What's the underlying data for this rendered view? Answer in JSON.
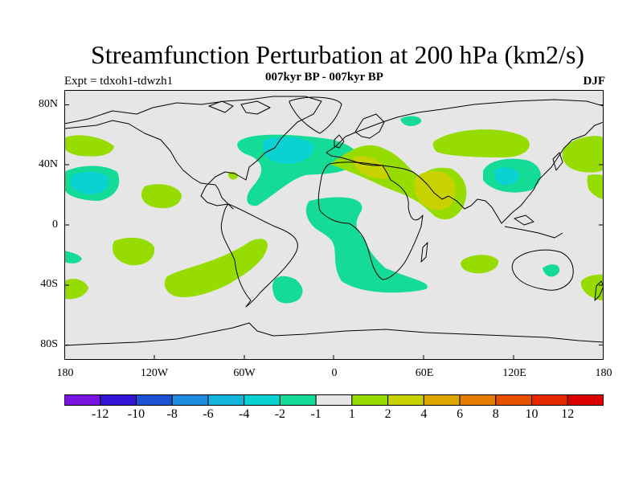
{
  "title": "Streamfunction Perturbation at 200 hPa (km2/s)",
  "subtitle_center": "007kyr BP - 007kyr BP",
  "subtitle_left": "Expt = tdxoh1-tdwzh1",
  "subtitle_right": "DJF",
  "lat_labels": [
    "80N",
    "40N",
    "0",
    "40S",
    "80S"
  ],
  "lon_labels": [
    "180",
    "120W",
    "60W",
    "0",
    "60E",
    "120E",
    "180"
  ],
  "colorbar": {
    "colors": [
      "#7a14e0",
      "#3214d6",
      "#1e50d2",
      "#1e8ce0",
      "#14b4dc",
      "#0ad2d2",
      "#14dc96",
      "#e6e6e6",
      "#96dc00",
      "#c8d200",
      "#dca500",
      "#e67d00",
      "#e65000",
      "#e62800",
      "#dc0000"
    ],
    "labels": [
      "-12",
      "-10",
      "-8",
      "-6",
      "-4",
      "-2",
      "-1",
      "1",
      "2",
      "4",
      "6",
      "8",
      "10",
      "12"
    ]
  },
  "map_colors": {
    "background": "#e6e6e6",
    "neg1": "#14dc96",
    "neg2": "#0ad2d2",
    "pos1": "#96dc00",
    "pos2": "#c8d200",
    "coast": "#000000"
  }
}
